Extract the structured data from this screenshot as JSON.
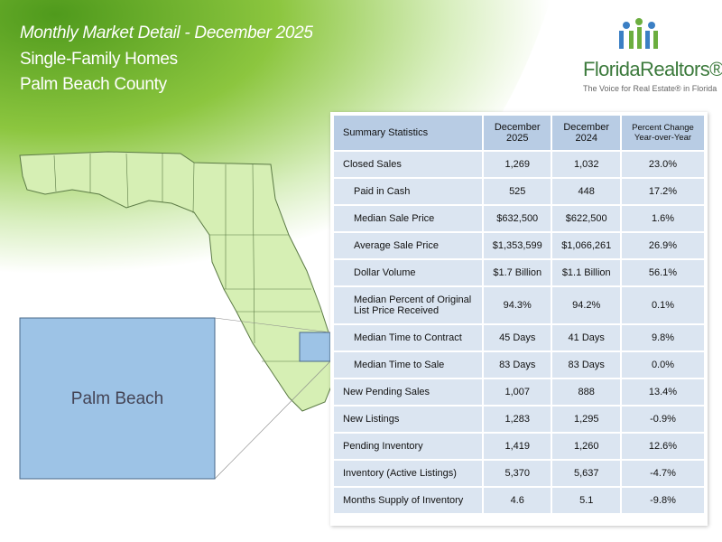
{
  "header": {
    "title": "Monthly Market Detail - December 2025",
    "subtitle": "Single-Family Homes",
    "area": "Palm Beach County"
  },
  "logo": {
    "name": "FloridaRealtors®",
    "tagline": "The Voice for Real Estate® in Florida"
  },
  "map": {
    "label": "Palm Beach"
  },
  "table": {
    "columns": [
      "Summary Statistics",
      "December 2025",
      "December 2024",
      "Percent Change Year-over-Year"
    ],
    "rows": [
      [
        "Closed Sales",
        "1,269",
        "1,032",
        "23.0%"
      ],
      [
        "Paid in Cash",
        "525",
        "448",
        "17.2%"
      ],
      [
        "Median Sale Price",
        "$632,500",
        "$622,500",
        "1.6%"
      ],
      [
        "Average Sale Price",
        "$1,353,599",
        "$1,066,261",
        "26.9%"
      ],
      [
        "Dollar Volume",
        "$1.7 Billion",
        "$1.1 Billion",
        "56.1%"
      ],
      [
        "Median Percent of Original List Price Received",
        "94.3%",
        "94.2%",
        "0.1%"
      ],
      [
        "Median Time to Contract",
        "45 Days",
        "41 Days",
        "9.8%"
      ],
      [
        "Median Time to Sale",
        "83 Days",
        "83 Days",
        "0.0%"
      ],
      [
        "New Pending Sales",
        "1,007",
        "888",
        "13.4%"
      ],
      [
        "New Listings",
        "1,283",
        "1,295",
        "-0.9%"
      ],
      [
        "Pending Inventory",
        "1,419",
        "1,260",
        "12.6%"
      ],
      [
        "Inventory (Active Listings)",
        "5,370",
        "5,637",
        "-4.7%"
      ],
      [
        "Months Supply of Inventory",
        "4.6",
        "5.1",
        "-9.8%"
      ]
    ]
  }
}
